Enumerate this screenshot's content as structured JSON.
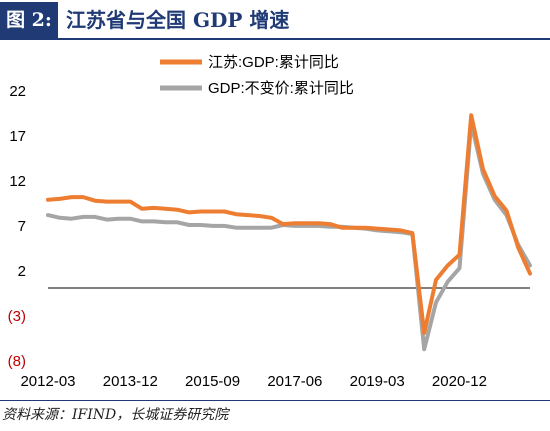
{
  "header": {
    "label": "图 2:",
    "title": "江苏省与全国 GDP 增速"
  },
  "source": "资料来源：IFIND，长城证券研究院",
  "colors": {
    "header_bg": "#1f3a75",
    "jiangsu": "#ed7d31",
    "national": "#a5a5a5"
  },
  "chart_data": {
    "type": "line",
    "title": "",
    "xlabel": "",
    "ylabel": "",
    "ylim": [
      -8,
      22
    ],
    "yticks": [
      22,
      17,
      12,
      7,
      2,
      -3,
      -8
    ],
    "ytick_labels": [
      "22",
      "17",
      "12",
      "7",
      "2",
      "(3)",
      "(8)"
    ],
    "xtick_labels": [
      "2012-03",
      "2013-12",
      "2015-09",
      "2017-06",
      "2019-03",
      "2020-12"
    ],
    "grid": false,
    "legend": "top",
    "x": [
      "2012-03",
      "2012-06",
      "2012-09",
      "2012-12",
      "2013-03",
      "2013-06",
      "2013-09",
      "2013-12",
      "2014-03",
      "2014-06",
      "2014-09",
      "2014-12",
      "2015-03",
      "2015-06",
      "2015-09",
      "2015-12",
      "2016-03",
      "2016-06",
      "2016-09",
      "2016-12",
      "2017-03",
      "2017-06",
      "2017-09",
      "2017-12",
      "2018-03",
      "2018-06",
      "2018-09",
      "2018-12",
      "2019-03",
      "2019-06",
      "2019-09",
      "2019-12",
      "2020-03",
      "2020-06",
      "2020-09",
      "2020-12",
      "2021-03",
      "2021-06",
      "2021-09",
      "2021-12",
      "2022-03",
      "2022-06"
    ],
    "series": [
      {
        "name": "江苏:GDP:累计同比",
        "values": [
          9.8,
          9.9,
          10.1,
          10.1,
          9.7,
          9.6,
          9.6,
          9.6,
          8.8,
          8.9,
          8.8,
          8.7,
          8.4,
          8.5,
          8.5,
          8.5,
          8.2,
          8.1,
          8.0,
          7.8,
          7.1,
          7.2,
          7.2,
          7.2,
          7.1,
          6.7,
          6.7,
          6.7,
          6.6,
          6.5,
          6.4,
          6.1,
          -5.0,
          0.9,
          2.5,
          3.7,
          19.2,
          13.2,
          10.2,
          8.6,
          4.5,
          1.6
        ]
      },
      {
        "name": "GDP:不变价:累计同比",
        "values": [
          8.1,
          7.8,
          7.7,
          7.9,
          7.9,
          7.6,
          7.7,
          7.7,
          7.4,
          7.4,
          7.3,
          7.3,
          7.0,
          7.0,
          6.9,
          6.9,
          6.7,
          6.7,
          6.7,
          6.7,
          7.0,
          6.9,
          6.9,
          6.9,
          6.8,
          6.8,
          6.7,
          6.6,
          6.4,
          6.3,
          6.2,
          6.0,
          -6.8,
          -1.6,
          0.7,
          2.2,
          18.3,
          12.7,
          9.8,
          8.1,
          4.8,
          2.5
        ]
      }
    ]
  }
}
